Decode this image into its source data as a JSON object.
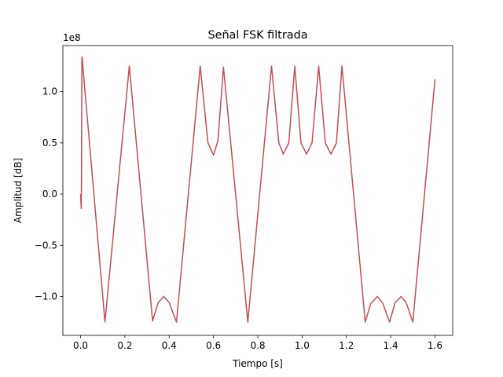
{
  "chart_data": {
    "type": "line",
    "title": "Señal FSK filtrada",
    "xlabel": "Tiempo [s]",
    "ylabel": "Amplitud [dB]",
    "y_offset_label": "1e8",
    "xlim": [
      -0.08,
      1.68
    ],
    "ylim": [
      -138000000.0,
      145000000.0
    ],
    "x_ticks": [
      0.0,
      0.2,
      0.4,
      0.6,
      0.8,
      1.0,
      1.2,
      1.4,
      1.6
    ],
    "x_tick_labels": [
      "0.0",
      "0.2",
      "0.4",
      "0.6",
      "0.8",
      "1.0",
      "1.2",
      "1.4",
      "1.6"
    ],
    "y_ticks": [
      -100000000.0,
      -50000000.0,
      0.0,
      50000000.0,
      100000000.0
    ],
    "y_tick_labels": [
      "−1.0",
      "−0.5",
      "0.0",
      "0.5",
      "1.0"
    ],
    "grid": false,
    "legend": "none",
    "series": [
      {
        "color": "#c44e52",
        "x": [
          0.0,
          0.003,
          0.004,
          0.006,
          0.008,
          0.012,
          0.11,
          0.22,
          0.325,
          0.35,
          0.375,
          0.4,
          0.433,
          0.54,
          0.575,
          0.6,
          0.62,
          0.645,
          0.755,
          0.862,
          0.895,
          0.915,
          0.94,
          0.967,
          0.995,
          1.02,
          1.045,
          1.075,
          1.105,
          1.13,
          1.155,
          1.18,
          1.285,
          1.31,
          1.34,
          1.365,
          1.395,
          1.42,
          1.447,
          1.47,
          1.5,
          1.6
        ],
        "y": [
          0.0,
          -14000000.0,
          10000000.0,
          134000000.0,
          132000000.0,
          120000000.0,
          -125000000.0,
          125000000.0,
          -124000000.0,
          -106000000.0,
          -100000000.0,
          -106000000.0,
          -125000000.0,
          125000000.0,
          50000000.0,
          38000000.0,
          52000000.0,
          124000000.0,
          -125000000.0,
          125000000.0,
          50000000.0,
          39000000.0,
          50000000.0,
          125000000.0,
          50000000.0,
          39000000.0,
          50000000.0,
          125000000.0,
          50000000.0,
          39000000.0,
          50000000.0,
          125000000.0,
          -125000000.0,
          -107000000.0,
          -100000000.0,
          -107000000.0,
          -125000000.0,
          -106000000.0,
          -100000000.0,
          -106000000.0,
          -125000000.0,
          112000000.0
        ]
      }
    ]
  }
}
